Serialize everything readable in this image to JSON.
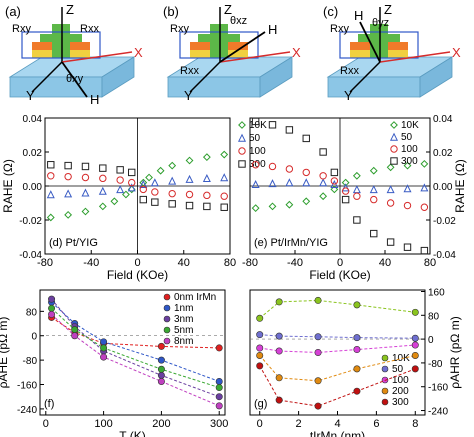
{
  "schematics": [
    {
      "label": "(a)",
      "angle_label": "θxy",
      "field_label": "H",
      "axes": [
        "Z",
        "X",
        "Y"
      ],
      "r_labels": [
        "Rxy",
        "Rxx"
      ]
    },
    {
      "label": "(b)",
      "angle_label": "θxz",
      "field_label": "H",
      "axes": [
        "Z",
        "X",
        "Y"
      ],
      "r_labels": [
        "Rxy",
        "Rxx"
      ]
    },
    {
      "label": "(c)",
      "angle_label": "θyz",
      "field_label": "H",
      "axes": [
        "Z",
        "X",
        "Y"
      ],
      "r_labels": [
        "Rxy",
        "Rxx"
      ]
    }
  ],
  "colors": {
    "c10K": "#2e9e2e",
    "c50": "#3a5cc4",
    "c100": "#d62b2b",
    "c300": "#222222",
    "c0nm": "#e02020",
    "c1nm": "#2f57c8",
    "c3nm": "#6a3fa0",
    "c5nm": "#3aa832",
    "c8nm": "#c040c0",
    "g10K": "#8ac41e",
    "g50": "#6f6fd0",
    "g100": "#d640d6",
    "g200": "#e08a10",
    "g300": "#c01010",
    "substrate": "#a9d7f0",
    "layer_yellow": "#f0d040",
    "layer_orange": "#f07a2a",
    "layer_green": "#5cb848"
  },
  "chart_data": [
    {
      "type": "scatter",
      "label": "(d) Pt/YIG",
      "xlabel": "Field (KOe)",
      "ylabel": "RAHE (Ω)",
      "xlim": [
        -80,
        80
      ],
      "ylim": [
        -0.04,
        0.04
      ],
      "xticks": [
        "-80",
        "-40",
        "0",
        "40",
        "80"
      ],
      "yticks": [
        "-0.04",
        "-0.02",
        "0.00",
        "0.02",
        "0.04"
      ],
      "series": [
        {
          "name": "10K",
          "marker": "diamond",
          "x": [
            -75,
            -60,
            -45,
            -30,
            -20,
            -10,
            -5,
            5,
            10,
            20,
            30,
            45,
            60,
            75
          ],
          "y": [
            -0.0185,
            -0.017,
            -0.015,
            -0.012,
            -0.009,
            -0.005,
            -0.002,
            0.002,
            0.005,
            0.009,
            0.012,
            0.015,
            0.017,
            0.0185
          ]
        },
        {
          "name": "50",
          "marker": "triangle",
          "x": [
            -75,
            -60,
            -45,
            -30,
            -15,
            -5,
            5,
            15,
            30,
            45,
            60,
            75
          ],
          "y": [
            -0.005,
            -0.0045,
            -0.004,
            -0.003,
            -0.002,
            -0.001,
            0.001,
            0.002,
            0.003,
            0.004,
            0.0045,
            0.005
          ]
        },
        {
          "name": "100",
          "marker": "circle",
          "x": [
            -75,
            -60,
            -45,
            -30,
            -15,
            -5,
            5,
            15,
            30,
            45,
            60,
            75
          ],
          "y": [
            0.006,
            0.0055,
            0.005,
            0.0045,
            0.0035,
            0.002,
            -0.002,
            -0.0035,
            -0.0045,
            -0.005,
            -0.0055,
            -0.006
          ]
        },
        {
          "name": "300",
          "marker": "square",
          "x": [
            -75,
            -60,
            -45,
            -30,
            -15,
            -5,
            5,
            15,
            30,
            45,
            60,
            75
          ],
          "y": [
            0.0125,
            0.012,
            0.0115,
            0.0105,
            0.0095,
            0.008,
            -0.008,
            -0.0095,
            -0.0105,
            -0.0115,
            -0.012,
            -0.0125
          ]
        }
      ]
    },
    {
      "type": "scatter",
      "label": "(e) Pt/IrMn/YIG",
      "xlabel": "Field (KOe)",
      "ylabel": "RAHE (Ω)",
      "xlim": [
        -80,
        80
      ],
      "ylim": [
        -0.04,
        0.04
      ],
      "xticks": [
        "-80",
        "-40",
        "0",
        "40",
        "80"
      ],
      "yticks": [
        "-0.04",
        "-0.02",
        "0.00",
        "0.02",
        "0.04"
      ],
      "series": [
        {
          "name": "10K",
          "marker": "diamond",
          "x": [
            -75,
            -60,
            -45,
            -30,
            -15,
            -5,
            5,
            15,
            30,
            45,
            60,
            75
          ],
          "y": [
            -0.013,
            -0.012,
            -0.011,
            -0.009,
            -0.006,
            -0.002,
            0.002,
            0.006,
            0.009,
            0.011,
            0.012,
            0.013
          ]
        },
        {
          "name": "50",
          "marker": "triangle",
          "x": [
            -75,
            -60,
            -45,
            -30,
            -15,
            -5,
            5,
            15,
            30,
            45,
            60,
            75
          ],
          "y": [
            0.001,
            0.0015,
            0.002,
            0.002,
            0.002,
            0.001,
            -0.001,
            -0.002,
            -0.002,
            -0.002,
            -0.0015,
            -0.001
          ]
        },
        {
          "name": "100",
          "marker": "circle",
          "x": [
            -75,
            -60,
            -45,
            -30,
            -15,
            -5,
            5,
            15,
            30,
            45,
            60,
            75
          ],
          "y": [
            0.0125,
            0.0115,
            0.01,
            0.008,
            0.006,
            0.003,
            -0.003,
            -0.006,
            -0.008,
            -0.01,
            -0.0115,
            -0.0125
          ]
        },
        {
          "name": "300",
          "marker": "square",
          "x": [
            -75,
            -60,
            -45,
            -30,
            -15,
            -5,
            5,
            15,
            30,
            45,
            60,
            75
          ],
          "y": [
            0.038,
            0.036,
            0.033,
            0.028,
            0.02,
            0.008,
            -0.008,
            -0.02,
            -0.028,
            -0.033,
            -0.036,
            -0.038
          ]
        }
      ]
    },
    {
      "type": "line",
      "label": "(f)",
      "xlabel": "T (K)",
      "ylabel": "ρAHE (pΩ m)",
      "xlim": [
        -10,
        310
      ],
      "ylim": [
        -260,
        150
      ],
      "xticks": [
        "0",
        "100",
        "200",
        "300"
      ],
      "yticks": [
        "-240",
        "-160",
        "-80",
        "0",
        "80"
      ],
      "series": [
        {
          "name": "0nm IrMn",
          "x": [
            10,
            50,
            100,
            200,
            300
          ],
          "y": [
            60,
            10,
            -25,
            -35,
            -40
          ]
        },
        {
          "name": "1nm",
          "x": [
            10,
            50,
            100,
            200,
            300
          ],
          "y": [
            110,
            40,
            -20,
            -80,
            -150
          ]
        },
        {
          "name": "3nm",
          "x": [
            10,
            50,
            100,
            200,
            300
          ],
          "y": [
            120,
            30,
            -50,
            -130,
            -200
          ]
        },
        {
          "name": "5nm",
          "x": [
            10,
            50,
            100,
            200,
            300
          ],
          "y": [
            90,
            20,
            -40,
            -110,
            -170
          ]
        },
        {
          "name": "8nm",
          "x": [
            10,
            50,
            100,
            200,
            300
          ],
          "y": [
            70,
            0,
            -70,
            -150,
            -230
          ]
        }
      ]
    },
    {
      "type": "line",
      "label": "(g)",
      "xlabel": "tIrMn (nm)",
      "ylabel": "ρAHR (pΩ m)",
      "xlim": [
        -0.5,
        8.5
      ],
      "ylim": [
        -255,
        165
      ],
      "xticks": [
        "0",
        "2",
        "4",
        "6",
        "8"
      ],
      "yticks": [
        "160",
        "80",
        "0",
        "-80",
        "-160",
        "-240"
      ],
      "series": [
        {
          "name": "10K",
          "x": [
            0,
            1,
            3,
            5,
            8
          ],
          "y": [
            70,
            125,
            130,
            115,
            90
          ]
        },
        {
          "name": "50",
          "x": [
            0,
            1,
            3,
            5,
            8
          ],
          "y": [
            15,
            10,
            8,
            5,
            3
          ]
        },
        {
          "name": "100",
          "x": [
            0,
            1,
            3,
            5,
            8
          ],
          "y": [
            -30,
            -40,
            -45,
            -35,
            -20
          ]
        },
        {
          "name": "200",
          "x": [
            0,
            1,
            3,
            5,
            8
          ],
          "y": [
            -55,
            -130,
            -140,
            -100,
            -55
          ]
        },
        {
          "name": "300",
          "x": [
            0,
            1,
            3,
            5,
            8
          ],
          "y": [
            -90,
            -205,
            -225,
            -175,
            -100
          ]
        }
      ]
    }
  ]
}
